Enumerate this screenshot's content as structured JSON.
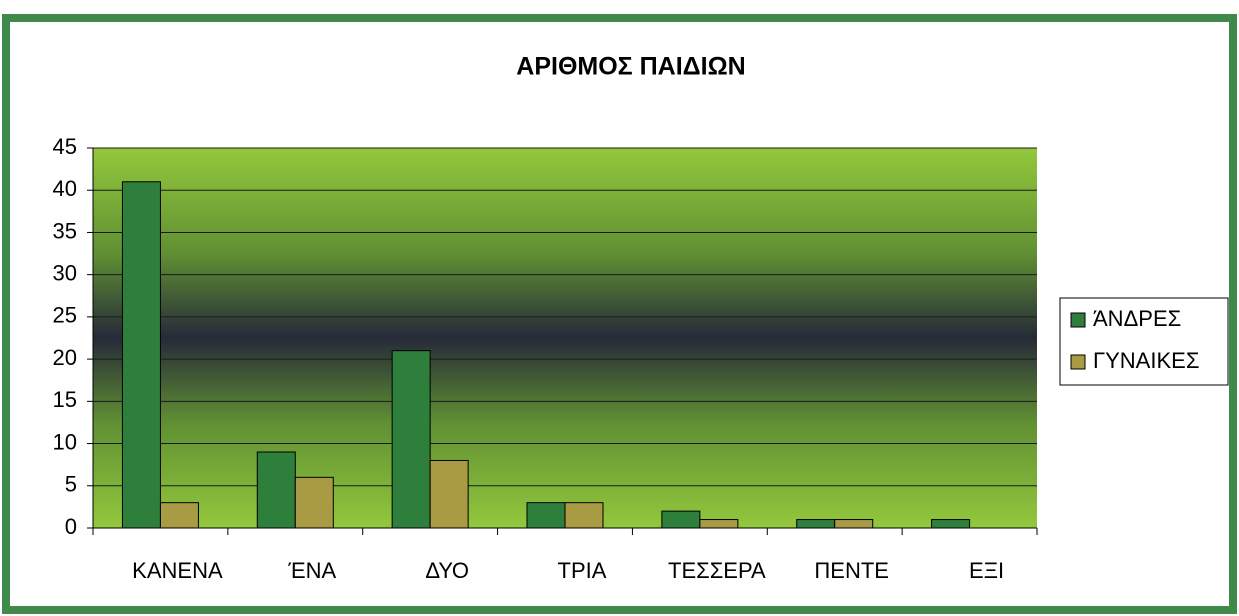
{
  "chart_data": {
    "type": "bar",
    "title": "ΑΡΙΘΜΟΣ ΠΑΙΔΙΩΝ",
    "categories": [
      "ΚΑΝΕΝΑ",
      "ΈΝΑ",
      "ΔΥΟ",
      "ΤΡΙΑ",
      "ΤΕΣΣΕΡΑ",
      "ΠΕΝΤΕ",
      "ΕΞΙ"
    ],
    "series": [
      {
        "name": "ΆΝΔΡΕΣ",
        "color": "#2f7f3c",
        "values": [
          41,
          9,
          21,
          3,
          2,
          1,
          1
        ]
      },
      {
        "name": "ΓΥΝΑΙΚΕΣ",
        "color": "#a99a44",
        "values": [
          3,
          6,
          8,
          3,
          1,
          1,
          0
        ]
      }
    ],
    "ylim": [
      0,
      45
    ],
    "yticks": [
      0,
      5,
      10,
      15,
      20,
      25,
      30,
      35,
      40,
      45
    ],
    "grid": true,
    "legend": "right"
  }
}
